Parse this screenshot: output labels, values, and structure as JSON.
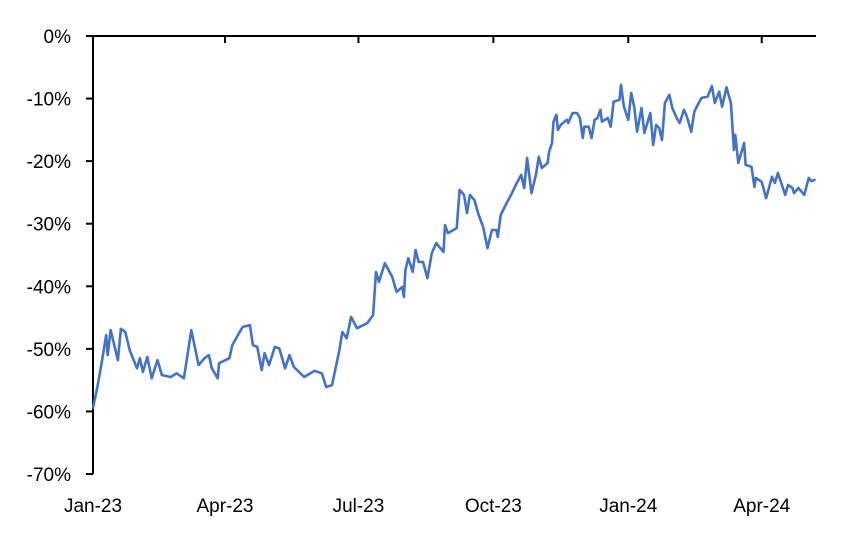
{
  "chart_data": {
    "type": "line",
    "title": "",
    "xlabel": "",
    "ylabel": "",
    "x_axis_position": "top (at 0%)",
    "grid": false,
    "legend": "none",
    "ylim": [
      -70,
      0
    ],
    "xlim": [
      "2023-01-01",
      "2024-05-08"
    ],
    "y_ticks": [
      0,
      -10,
      -20,
      -30,
      -40,
      -50,
      -60,
      -70
    ],
    "y_tick_labels": [
      "0%",
      "-10%",
      "-20%",
      "-30%",
      "-40%",
      "-50%",
      "-60%",
      "-70%"
    ],
    "x_ticks": [
      "2023-01-01",
      "2023-04-01",
      "2023-07-01",
      "2023-10-01",
      "2024-01-01",
      "2024-04-01"
    ],
    "x_tick_labels": [
      "Jan-23",
      "Apr-23",
      "Jul-23",
      "Oct-23",
      "Jan-24",
      "Apr-24"
    ],
    "series": [
      {
        "color": "#4472C4",
        "points": [
          [
            "2023-01-01",
            -59.4
          ],
          [
            "2023-01-04",
            -56.1
          ],
          [
            "2023-01-07",
            -52.1
          ],
          [
            "2023-01-10",
            -47.8
          ],
          [
            "2023-01-11",
            -51.0
          ],
          [
            "2023-01-13",
            -47.0
          ],
          [
            "2023-01-18",
            -51.8
          ],
          [
            "2023-01-20",
            -46.8
          ],
          [
            "2023-01-23",
            -47.3
          ],
          [
            "2023-01-26",
            -50.2
          ],
          [
            "2023-01-31",
            -53.1
          ],
          [
            "2023-02-02",
            -51.5
          ],
          [
            "2023-02-04",
            -53.7
          ],
          [
            "2023-02-07",
            -51.3
          ],
          [
            "2023-02-10",
            -54.7
          ],
          [
            "2023-02-14",
            -51.8
          ],
          [
            "2023-02-17",
            -54.2
          ],
          [
            "2023-02-23",
            -54.5
          ],
          [
            "2023-02-27",
            -53.9
          ],
          [
            "2023-03-04",
            -54.7
          ],
          [
            "2023-03-09",
            -47.0
          ],
          [
            "2023-03-14",
            -52.6
          ],
          [
            "2023-03-18",
            -51.5
          ],
          [
            "2023-03-21",
            -51.0
          ],
          [
            "2023-03-23",
            -53.1
          ],
          [
            "2023-03-27",
            -54.7
          ],
          [
            "2023-03-28",
            -52.3
          ],
          [
            "2023-04-04",
            -51.5
          ],
          [
            "2023-04-06",
            -49.4
          ],
          [
            "2023-04-11",
            -47.3
          ],
          [
            "2023-04-13",
            -46.5
          ],
          [
            "2023-04-18",
            -46.2
          ],
          [
            "2023-04-20",
            -49.4
          ],
          [
            "2023-04-23",
            -49.7
          ],
          [
            "2023-04-26",
            -53.4
          ],
          [
            "2023-04-28",
            -50.7
          ],
          [
            "2023-05-01",
            -52.6
          ],
          [
            "2023-05-05",
            -49.7
          ],
          [
            "2023-05-08",
            -49.9
          ],
          [
            "2023-05-12",
            -53.1
          ],
          [
            "2023-05-15",
            -51.0
          ],
          [
            "2023-05-18",
            -52.9
          ],
          [
            "2023-05-25",
            -54.5
          ],
          [
            "2023-06-01",
            -53.5
          ],
          [
            "2023-06-06",
            -53.9
          ],
          [
            "2023-06-09",
            -56.1
          ],
          [
            "2023-06-13",
            -55.8
          ],
          [
            "2023-06-18",
            -50.2
          ],
          [
            "2023-06-20",
            -47.3
          ],
          [
            "2023-06-23",
            -48.3
          ],
          [
            "2023-06-26",
            -44.9
          ],
          [
            "2023-06-30",
            -46.7
          ],
          [
            "2023-07-07",
            -45.9
          ],
          [
            "2023-07-11",
            -44.6
          ],
          [
            "2023-07-13",
            -37.7
          ],
          [
            "2023-07-15",
            -39.3
          ],
          [
            "2023-07-19",
            -36.3
          ],
          [
            "2023-07-24",
            -38.5
          ],
          [
            "2023-07-27",
            -40.9
          ],
          [
            "2023-07-31",
            -40.1
          ],
          [
            "2023-08-01",
            -41.7
          ],
          [
            "2023-08-02",
            -37.4
          ],
          [
            "2023-08-04",
            -35.5
          ],
          [
            "2023-08-07",
            -37.7
          ],
          [
            "2023-08-09",
            -34.2
          ],
          [
            "2023-08-11",
            -36.1
          ],
          [
            "2023-08-14",
            -36.1
          ],
          [
            "2023-08-17",
            -38.7
          ],
          [
            "2023-08-20",
            -34.7
          ],
          [
            "2023-08-23",
            -33.1
          ],
          [
            "2023-08-28",
            -34.5
          ],
          [
            "2023-08-29",
            -30.2
          ],
          [
            "2023-08-31",
            -31.5
          ],
          [
            "2023-09-06",
            -30.7
          ],
          [
            "2023-09-08",
            -24.6
          ],
          [
            "2023-09-11",
            -25.4
          ],
          [
            "2023-09-13",
            -28.3
          ],
          [
            "2023-09-15",
            -25.4
          ],
          [
            "2023-09-18",
            -26.2
          ],
          [
            "2023-09-21",
            -28.6
          ],
          [
            "2023-09-24",
            -30.5
          ],
          [
            "2023-09-27",
            -33.9
          ],
          [
            "2023-09-30",
            -31.0
          ],
          [
            "2023-10-03",
            -31.0
          ],
          [
            "2023-10-04",
            -32.1
          ],
          [
            "2023-10-06",
            -28.6
          ],
          [
            "2023-10-10",
            -26.7
          ],
          [
            "2023-10-13",
            -25.4
          ],
          [
            "2023-10-17",
            -23.5
          ],
          [
            "2023-10-20",
            -22.2
          ],
          [
            "2023-10-22",
            -24.3
          ],
          [
            "2023-10-24",
            -19.5
          ],
          [
            "2023-10-27",
            -25.1
          ],
          [
            "2023-10-30",
            -22.2
          ],
          [
            "2023-11-01",
            -19.3
          ],
          [
            "2023-11-03",
            -21.1
          ],
          [
            "2023-11-07",
            -20.3
          ],
          [
            "2023-11-08",
            -18.5
          ],
          [
            "2023-11-10",
            -17.1
          ],
          [
            "2023-11-11",
            -13.7
          ],
          [
            "2023-11-13",
            -12.6
          ],
          [
            "2023-11-14",
            -15.0
          ],
          [
            "2023-11-16",
            -14.2
          ],
          [
            "2023-11-20",
            -13.4
          ],
          [
            "2023-11-21",
            -13.9
          ],
          [
            "2023-11-24",
            -12.3
          ],
          [
            "2023-11-27",
            -12.3
          ],
          [
            "2023-11-29",
            -13.1
          ],
          [
            "2023-12-01",
            -16.3
          ],
          [
            "2023-12-02",
            -14.5
          ],
          [
            "2023-12-05",
            -14.5
          ],
          [
            "2023-12-07",
            -16.3
          ],
          [
            "2023-12-09",
            -13.4
          ],
          [
            "2023-12-11",
            -13.1
          ],
          [
            "2023-12-13",
            -11.8
          ],
          [
            "2023-12-14",
            -13.7
          ],
          [
            "2023-12-18",
            -13.1
          ],
          [
            "2023-12-20",
            -14.5
          ],
          [
            "2023-12-22",
            -10.5
          ],
          [
            "2023-12-26",
            -10.2
          ],
          [
            "2023-12-27",
            -7.8
          ],
          [
            "2023-12-29",
            -11.3
          ],
          [
            "2024-01-01",
            -13.4
          ],
          [
            "2024-01-03",
            -9.1
          ],
          [
            "2024-01-05",
            -11.3
          ],
          [
            "2024-01-07",
            -15.3
          ],
          [
            "2024-01-10",
            -11.5
          ],
          [
            "2024-01-12",
            -15.5
          ],
          [
            "2024-01-16",
            -12.3
          ],
          [
            "2024-01-18",
            -17.4
          ],
          [
            "2024-01-20",
            -14.2
          ],
          [
            "2024-01-22",
            -14.7
          ],
          [
            "2024-01-24",
            -16.6
          ],
          [
            "2024-01-26",
            -10.7
          ],
          [
            "2024-01-29",
            -9.4
          ],
          [
            "2024-01-31",
            -11.5
          ],
          [
            "2024-02-03",
            -13.1
          ],
          [
            "2024-02-05",
            -13.9
          ],
          [
            "2024-02-08",
            -11.8
          ],
          [
            "2024-02-10",
            -12.9
          ],
          [
            "2024-02-13",
            -15.3
          ],
          [
            "2024-02-15",
            -12.1
          ],
          [
            "2024-02-18",
            -10.7
          ],
          [
            "2024-02-20",
            -9.9
          ],
          [
            "2024-02-24",
            -9.7
          ],
          [
            "2024-02-27",
            -8.0
          ],
          [
            "2024-02-29",
            -10.7
          ],
          [
            "2024-03-03",
            -8.9
          ],
          [
            "2024-03-05",
            -11.3
          ],
          [
            "2024-03-08",
            -8.2
          ],
          [
            "2024-03-11",
            -10.7
          ],
          [
            "2024-03-13",
            -18.2
          ],
          [
            "2024-03-14",
            -15.8
          ],
          [
            "2024-03-16",
            -20.3
          ],
          [
            "2024-03-20",
            -17.1
          ],
          [
            "2024-03-21",
            -20.6
          ],
          [
            "2024-03-25",
            -20.9
          ],
          [
            "2024-03-27",
            -24.1
          ],
          [
            "2024-03-28",
            -22.7
          ],
          [
            "2024-04-01",
            -23.3
          ],
          [
            "2024-04-04",
            -25.9
          ],
          [
            "2024-04-08",
            -22.5
          ],
          [
            "2024-04-10",
            -23.5
          ],
          [
            "2024-04-12",
            -21.9
          ],
          [
            "2024-04-17",
            -25.4
          ],
          [
            "2024-04-19",
            -23.8
          ],
          [
            "2024-04-22",
            -24.3
          ],
          [
            "2024-04-23",
            -25.1
          ],
          [
            "2024-04-26",
            -24.3
          ],
          [
            "2024-04-30",
            -25.4
          ],
          [
            "2024-05-03",
            -22.7
          ],
          [
            "2024-05-05",
            -23.2
          ],
          [
            "2024-05-07",
            -23.0
          ]
        ]
      }
    ]
  }
}
